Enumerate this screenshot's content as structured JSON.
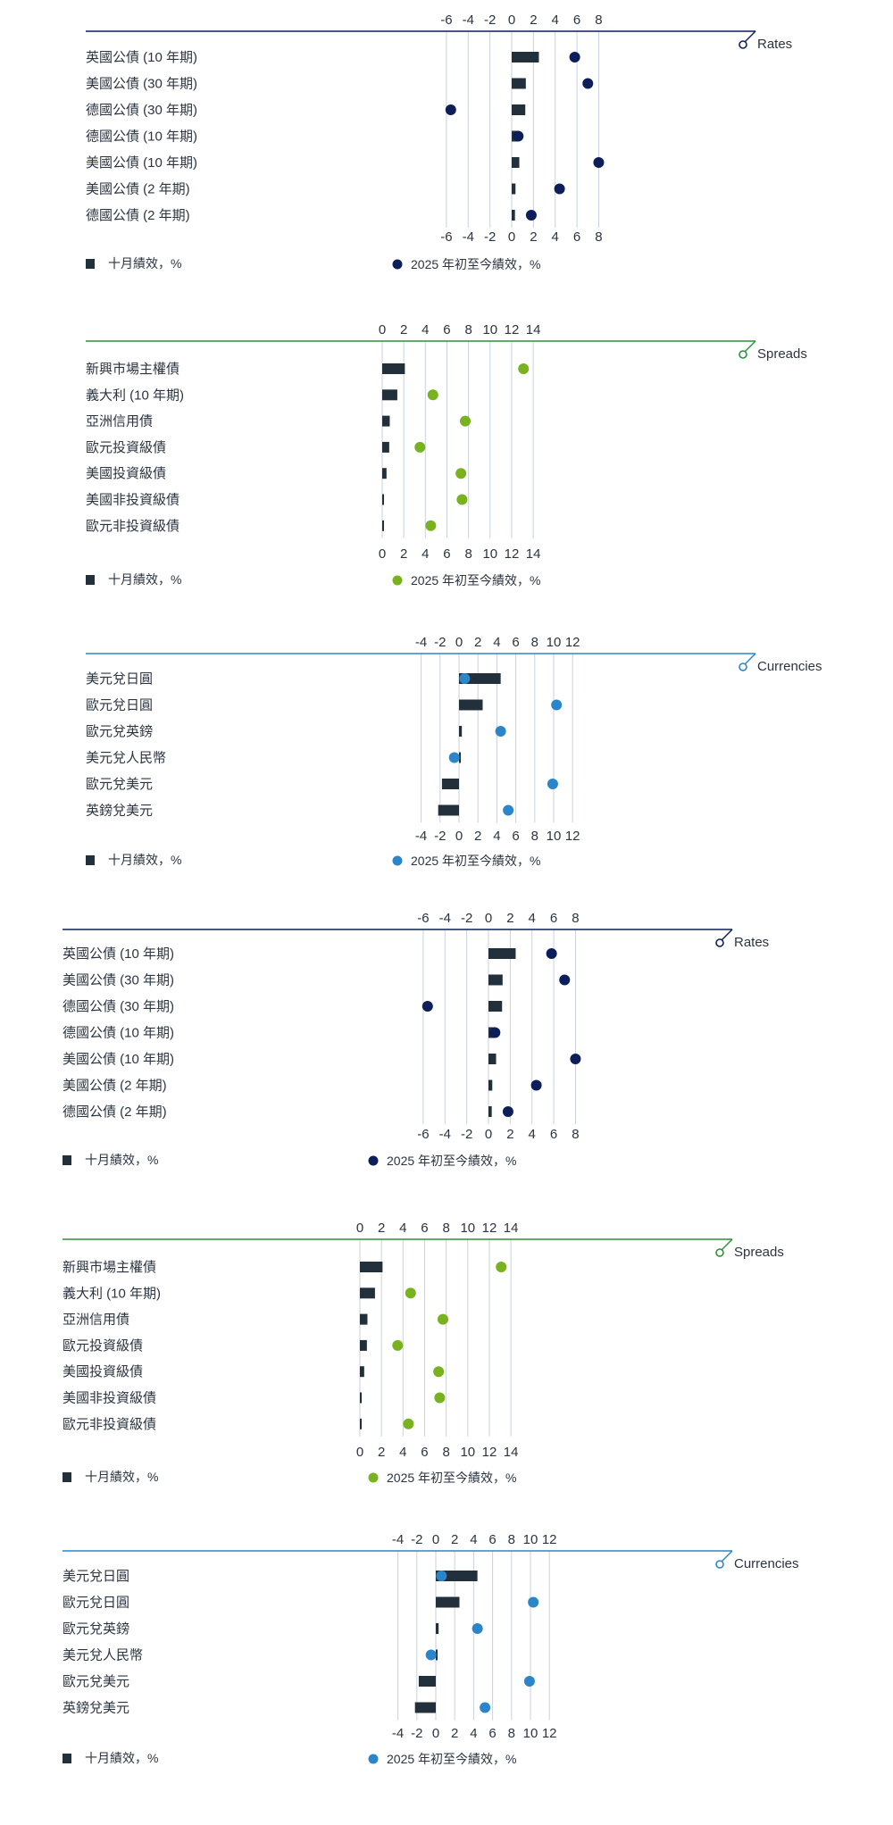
{
  "colors": {
    "bar": "#22303c",
    "grid": "#c9d2de",
    "rates": "#0c1f5b",
    "spreads": "#78b21e",
    "spreads_line": "#2f8f3a",
    "currencies": "#2a86c9"
  },
  "chart_data": [
    {
      "type": "bar",
      "title": "Rates",
      "theme": "rates",
      "xlim": [
        -6,
        8
      ],
      "ticks": [
        -6,
        -4,
        -2,
        0,
        2,
        4,
        6,
        8
      ],
      "categories": [
        "英國公債 (10 年期)",
        "美國公債 (30 年期)",
        "德國公債 (30 年期)",
        "德國公債 (10 年期)",
        "美國公債 (10 年期)",
        "美國公債 (2 年期)",
        "德國公債 (2 年期)"
      ],
      "series": [
        {
          "name": "十月績效，%",
          "kind": "bar",
          "values": [
            2.5,
            1.3,
            1.25,
            0.6,
            0.7,
            0.35,
            0.3
          ]
        },
        {
          "name": "2025 年初至今績效，%",
          "kind": "dot",
          "values": [
            5.8,
            7.0,
            -5.6,
            0.6,
            8.0,
            4.4,
            1.8
          ]
        }
      ]
    },
    {
      "type": "bar",
      "title": "Spreads",
      "theme": "spreads",
      "xlim": [
        0,
        14
      ],
      "ticks": [
        0,
        2,
        4,
        6,
        8,
        10,
        12,
        14
      ],
      "categories": [
        "新興市場主權債",
        "義大利 (10 年期)",
        "亞洲信用債",
        "歐元投資級債",
        "美國投資級債",
        "美國非投資級債",
        "歐元非投資級債"
      ],
      "series": [
        {
          "name": "十月績效，%",
          "kind": "bar",
          "values": [
            2.1,
            1.4,
            0.7,
            0.65,
            0.4,
            0.1,
            0.05
          ]
        },
        {
          "name": "2025 年初至今績效，%",
          "kind": "dot",
          "values": [
            13.1,
            4.7,
            7.7,
            3.5,
            7.3,
            7.4,
            4.5
          ]
        }
      ]
    },
    {
      "type": "bar",
      "title": "Currencies",
      "theme": "currencies",
      "xlim": [
        -4,
        12
      ],
      "ticks": [
        -4,
        -2,
        0,
        2,
        4,
        6,
        8,
        10,
        12
      ],
      "categories": [
        "美元兌日圓",
        "歐元兌日圓",
        "歐元兌英鎊",
        "美元兌人民幣",
        "歐元兌美元",
        "英鎊兌美元"
      ],
      "series": [
        {
          "name": "十月績效，%",
          "kind": "bar",
          "values": [
            4.4,
            2.5,
            0.3,
            0.1,
            -1.8,
            -2.2
          ]
        },
        {
          "name": "2025 年初至今績效，%",
          "kind": "dot",
          "values": [
            0.6,
            10.3,
            4.4,
            -0.5,
            9.9,
            5.2
          ]
        }
      ]
    },
    {
      "type": "bar",
      "title": "Rates",
      "theme": "rates",
      "xlim": [
        -6,
        8
      ],
      "ticks": [
        -6,
        -4,
        -2,
        0,
        2,
        4,
        6,
        8
      ],
      "categories": [
        "英國公債 (10 年期)",
        "美國公債 (30 年期)",
        "德國公債 (30 年期)",
        "德國公債 (10 年期)",
        "美國公債 (10 年期)",
        "美國公債 (2 年期)",
        "德國公債 (2 年期)"
      ],
      "series": [
        {
          "name": "十月績效，%",
          "kind": "bar",
          "values": [
            2.5,
            1.3,
            1.25,
            0.6,
            0.7,
            0.35,
            0.3
          ]
        },
        {
          "name": "2025 年初至今績效，%",
          "kind": "dot",
          "values": [
            5.8,
            7.0,
            -5.6,
            0.6,
            8.0,
            4.4,
            1.8
          ]
        }
      ]
    },
    {
      "type": "bar",
      "title": "Spreads",
      "theme": "spreads",
      "xlim": [
        0,
        14
      ],
      "ticks": [
        0,
        2,
        4,
        6,
        8,
        10,
        12,
        14
      ],
      "categories": [
        "新興市場主權債",
        "義大利 (10 年期)",
        "亞洲信用債",
        "歐元投資級債",
        "美國投資級債",
        "美國非投資級債",
        "歐元非投資級債"
      ],
      "series": [
        {
          "name": "十月績效，%",
          "kind": "bar",
          "values": [
            2.1,
            1.4,
            0.7,
            0.65,
            0.4,
            0.1,
            0.05
          ]
        },
        {
          "name": "2025 年初至今績效，%",
          "kind": "dot",
          "values": [
            13.1,
            4.7,
            7.7,
            3.5,
            7.3,
            7.4,
            4.5
          ]
        }
      ]
    },
    {
      "type": "bar",
      "title": "Currencies",
      "theme": "currencies",
      "xlim": [
        -4,
        12
      ],
      "ticks": [
        -4,
        -2,
        0,
        2,
        4,
        6,
        8,
        10,
        12
      ],
      "categories": [
        "美元兌日圓",
        "歐元兌日圓",
        "歐元兌英鎊",
        "美元兌人民幣",
        "歐元兌美元",
        "英鎊兌美元"
      ],
      "series": [
        {
          "name": "十月績效，%",
          "kind": "bar",
          "values": [
            4.4,
            2.5,
            0.3,
            0.1,
            -1.8,
            -2.2
          ]
        },
        {
          "name": "2025 年初至今績效，%",
          "kind": "dot",
          "values": [
            0.6,
            10.3,
            4.4,
            -0.5,
            9.9,
            5.2
          ]
        }
      ]
    }
  ]
}
